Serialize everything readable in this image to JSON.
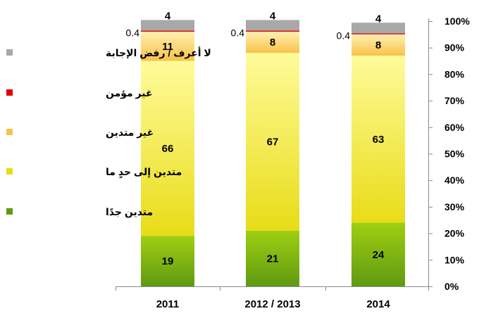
{
  "chart_data": {
    "type": "bar",
    "stacked": true,
    "categories": [
      "2011",
      "2012 / 2013",
      "2014"
    ],
    "series": [
      {
        "name": "متدين جدًا",
        "values": [
          19,
          21,
          24
        ],
        "color_top": "#9fcf12",
        "color_bottom": "#5f9a12"
      },
      {
        "name": "متدين إلى حدٍ ما",
        "values": [
          66,
          67,
          63
        ],
        "color_top": "#fffb9a",
        "color_bottom": "#e8dc18"
      },
      {
        "name": "غير متدين",
        "values": [
          11,
          8,
          8
        ],
        "color_top": "#fff0b0",
        "color_bottom": "#f8c24a"
      },
      {
        "name": "غير مؤمن",
        "values": [
          0.4,
          0.4,
          0.4
        ],
        "color_top": "#e00000",
        "color_bottom": "#e00000"
      },
      {
        "name": "لا أعرف / رفض الإجابة",
        "values": [
          4,
          4,
          4
        ],
        "color_top": "#a8a8a8",
        "color_bottom": "#a8a8a8"
      }
    ],
    "ylim": [
      0,
      100
    ],
    "ytick_labels": [
      "0%",
      "10%",
      "20%",
      "30%",
      "40%",
      "50%",
      "60%",
      "70%",
      "80%",
      "90%",
      "100%"
    ],
    "yaxis_position": "right",
    "legend_position": "left",
    "grid": false,
    "title": "",
    "xlabel": "",
    "ylabel": ""
  }
}
